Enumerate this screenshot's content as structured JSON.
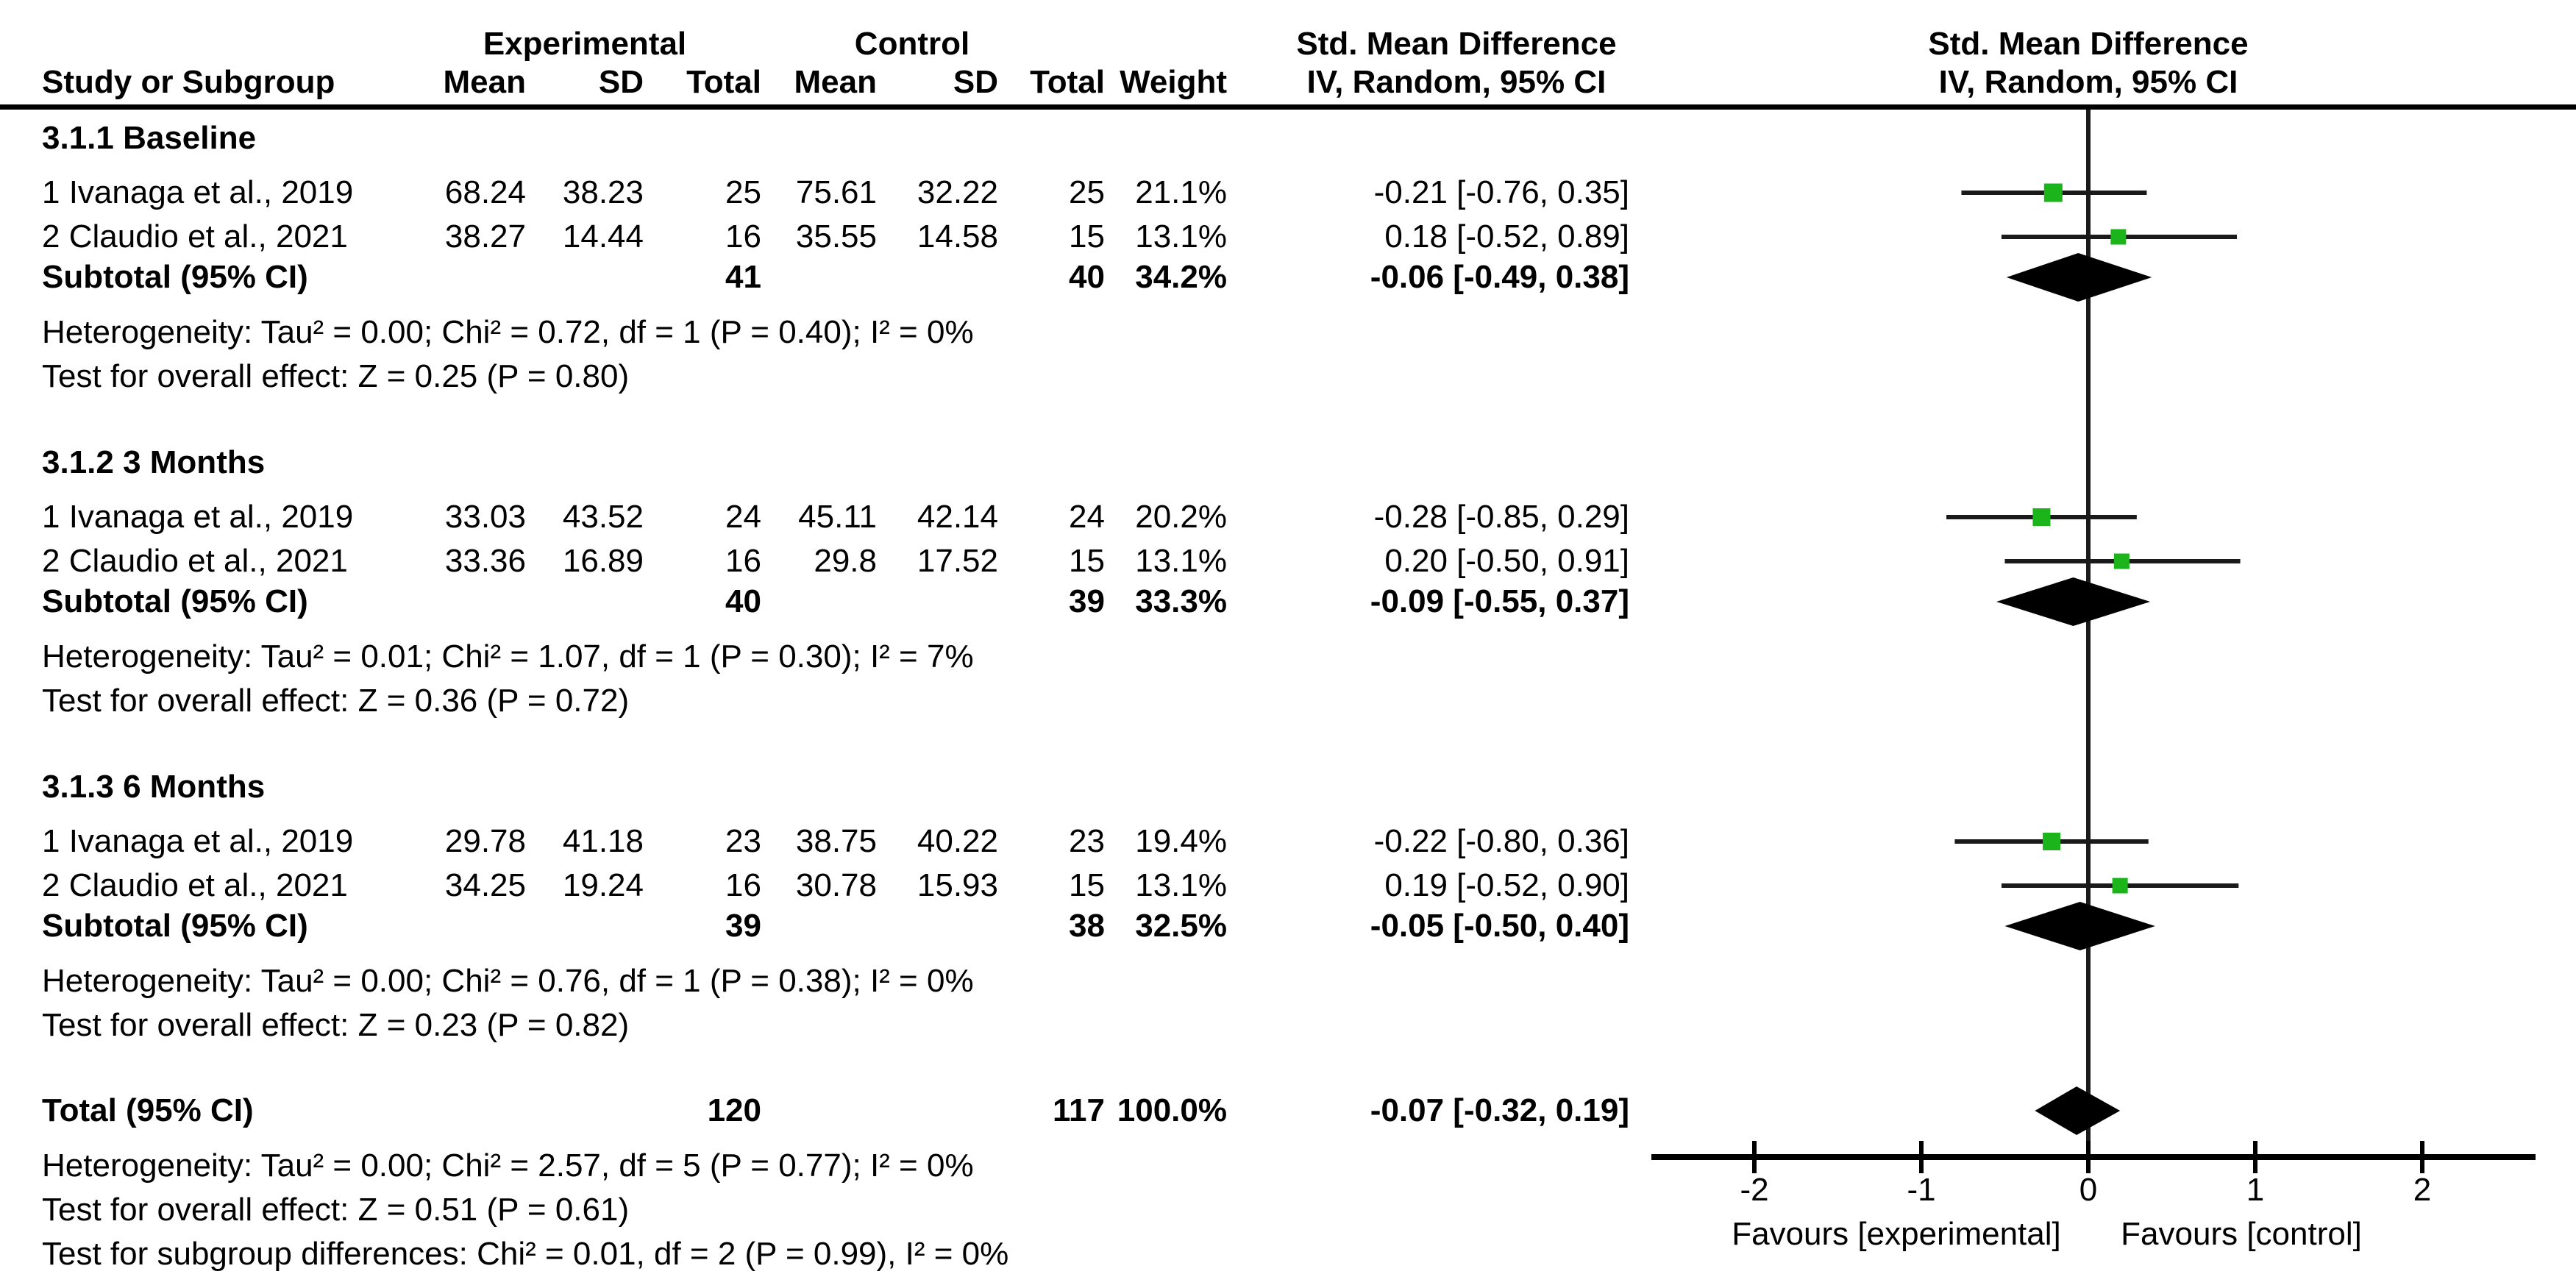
{
  "table_header": {
    "group_experimental": "Experimental",
    "group_control": "Control",
    "smd_title": "Std. Mean Difference",
    "smd_sub": "IV, Random, 95% CI",
    "col_study": "Study or Subgroup",
    "col_mean": "Mean",
    "col_sd": "SD",
    "col_total": "Total",
    "col_weight": "Weight"
  },
  "axis": {
    "tick_labels": [
      "-2",
      "-1",
      "0",
      "1",
      "2"
    ],
    "tick_values": [
      -2,
      -1,
      0,
      1,
      2
    ],
    "favours_left": "Favours [experimental]",
    "favours_right": "Favours [control]"
  },
  "colors": {
    "marker_green": "#1bb51b",
    "line": "#1a1a1a",
    "diamond": "#000000"
  },
  "chart_data": {
    "type": "forest",
    "effect_measure": "Std. Mean Difference",
    "method": "IV, Random, 95% CI",
    "xlim": [
      -2.6,
      2.6
    ],
    "groups": [
      {
        "title": "3.1.1 Baseline",
        "studies": [
          {
            "label": "1 Ivanaga et al., 2019",
            "mean_e": "68.24",
            "sd_e": "38.23",
            "total_e": "25",
            "mean_c": "75.61",
            "sd_c": "32.22",
            "total_c": "25",
            "weight": "21.1%",
            "weight_pct": 21.1,
            "ci_text": "-0.21 [-0.76, 0.35]",
            "est": -0.21,
            "lo": -0.76,
            "hi": 0.35
          },
          {
            "label": "2 Claudio et al., 2021",
            "mean_e": "38.27",
            "sd_e": "14.44",
            "total_e": "16",
            "mean_c": "35.55",
            "sd_c": "14.58",
            "total_c": "15",
            "weight": "13.1%",
            "weight_pct": 13.1,
            "ci_text": "0.18 [-0.52, 0.89]",
            "est": 0.18,
            "lo": -0.52,
            "hi": 0.89
          }
        ],
        "subtotal": {
          "label": "Subtotal (95% CI)",
          "total_e": "41",
          "total_c": "40",
          "weight": "34.2%",
          "ci_text": "-0.06 [-0.49, 0.38]",
          "est": -0.06,
          "lo": -0.49,
          "hi": 0.38
        },
        "heterogeneity": "Heterogeneity: Tau² = 0.00; Chi² = 0.72, df = 1 (P = 0.40); I² = 0%",
        "test": "Test for overall effect: Z = 0.25 (P = 0.80)"
      },
      {
        "title": "3.1.2 3 Months",
        "studies": [
          {
            "label": "1 Ivanaga et al., 2019",
            "mean_e": "33.03",
            "sd_e": "43.52",
            "total_e": "24",
            "mean_c": "45.11",
            "sd_c": "42.14",
            "total_c": "24",
            "weight": "20.2%",
            "weight_pct": 20.2,
            "ci_text": "-0.28 [-0.85, 0.29]",
            "est": -0.28,
            "lo": -0.85,
            "hi": 0.29
          },
          {
            "label": "2 Claudio et al., 2021",
            "mean_e": "33.36",
            "sd_e": "16.89",
            "total_e": "16",
            "mean_c": "29.8",
            "sd_c": "17.52",
            "total_c": "15",
            "weight": "13.1%",
            "weight_pct": 13.1,
            "ci_text": "0.20 [-0.50, 0.91]",
            "est": 0.2,
            "lo": -0.5,
            "hi": 0.91
          }
        ],
        "subtotal": {
          "label": "Subtotal (95% CI)",
          "total_e": "40",
          "total_c": "39",
          "weight": "33.3%",
          "ci_text": "-0.09 [-0.55, 0.37]",
          "est": -0.09,
          "lo": -0.55,
          "hi": 0.37
        },
        "heterogeneity": "Heterogeneity: Tau² = 0.01; Chi² = 1.07, df = 1 (P = 0.30); I² = 7%",
        "test": "Test for overall effect: Z = 0.36 (P = 0.72)"
      },
      {
        "title": "3.1.3 6 Months",
        "studies": [
          {
            "label": "1 Ivanaga et al., 2019",
            "mean_e": "29.78",
            "sd_e": "41.18",
            "total_e": "23",
            "mean_c": "38.75",
            "sd_c": "40.22",
            "total_c": "23",
            "weight": "19.4%",
            "weight_pct": 19.4,
            "ci_text": "-0.22 [-0.80, 0.36]",
            "est": -0.22,
            "lo": -0.8,
            "hi": 0.36
          },
          {
            "label": "2 Claudio et al., 2021",
            "mean_e": "34.25",
            "sd_e": "19.24",
            "total_e": "16",
            "mean_c": "30.78",
            "sd_c": "15.93",
            "total_c": "15",
            "weight": "13.1%",
            "weight_pct": 13.1,
            "ci_text": "0.19 [-0.52, 0.90]",
            "est": 0.19,
            "lo": -0.52,
            "hi": 0.9
          }
        ],
        "subtotal": {
          "label": "Subtotal (95% CI)",
          "total_e": "39",
          "total_c": "38",
          "weight": "32.5%",
          "ci_text": "-0.05 [-0.50, 0.40]",
          "est": -0.05,
          "lo": -0.5,
          "hi": 0.4
        },
        "heterogeneity": "Heterogeneity: Tau² = 0.00; Chi² = 0.76, df = 1 (P = 0.38); I² = 0%",
        "test": "Test for overall effect: Z = 0.23 (P = 0.82)"
      }
    ],
    "total": {
      "label": "Total (95% CI)",
      "total_e": "120",
      "total_c": "117",
      "weight": "100.0%",
      "ci_text": "-0.07 [-0.32, 0.19]",
      "est": -0.07,
      "lo": -0.32,
      "hi": 0.19,
      "heterogeneity": "Heterogeneity: Tau² = 0.00; Chi² = 2.57, df = 5 (P = 0.77); I² = 0%",
      "test": "Test for overall effect: Z = 0.51 (P = 0.61)",
      "subgroup_test": "Test for subgroup differences: Chi² = 0.01, df = 2 (P = 0.99), I² = 0%"
    }
  }
}
